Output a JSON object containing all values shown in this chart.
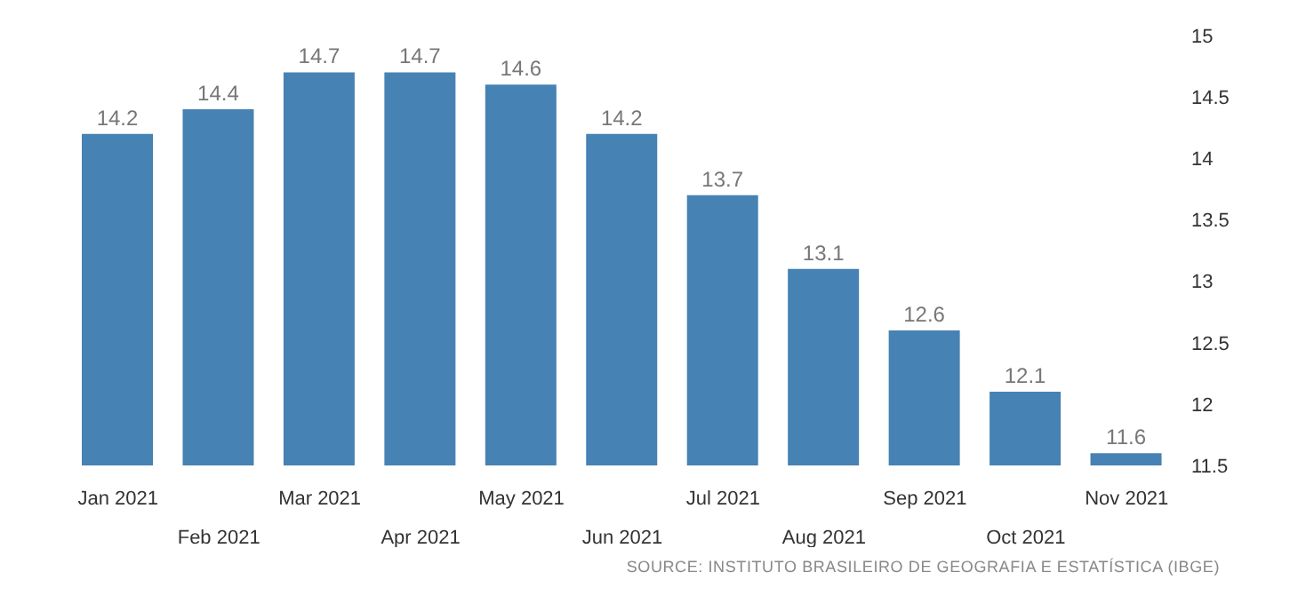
{
  "chart_data": {
    "type": "bar",
    "categories": [
      "Jan 2021",
      "Feb 2021",
      "Mar 2021",
      "Apr 2021",
      "May 2021",
      "Jun 2021",
      "Jul 2021",
      "Aug 2021",
      "Sep 2021",
      "Oct 2021",
      "Nov 2021"
    ],
    "values": [
      14.2,
      14.4,
      14.7,
      14.7,
      14.6,
      14.2,
      13.7,
      13.1,
      12.6,
      12.1,
      11.6
    ],
    "color": "#4682b4",
    "ylim": [
      11.5,
      15
    ],
    "yticks": [
      11.5,
      12,
      12.5,
      13,
      13.5,
      14,
      14.5,
      15
    ],
    "data_labels": true,
    "grid": false,
    "legend": false,
    "annotations": [
      "SOURCE: INSTITUTO BRASILEIRO DE GEOGRAFIA E ESTATÍSTICA (IBGE)"
    ]
  }
}
